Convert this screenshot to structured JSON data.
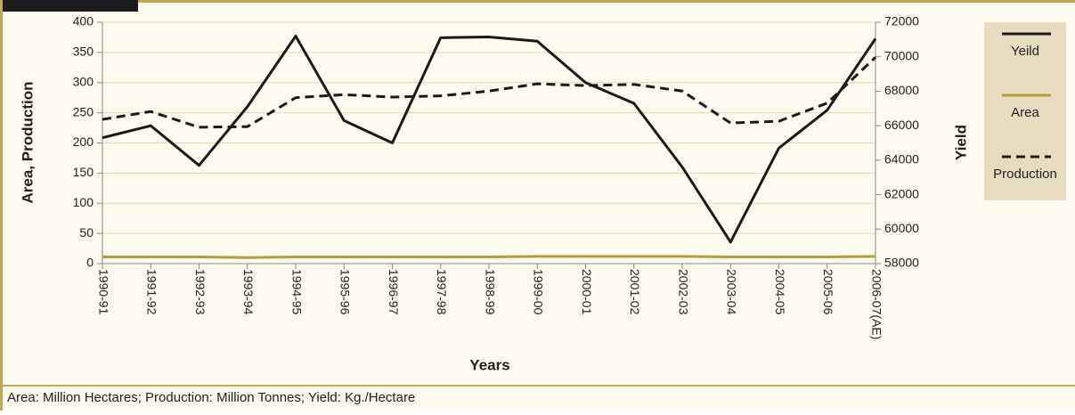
{
  "chart_data": {
    "type": "line",
    "xlabel": "Years",
    "ylabel": "Area, Production",
    "y2label": "Yield",
    "footnote": "Area: Million Hectares; Production: Million Tonnes; Yield: Kg./Hectare",
    "categories": [
      "1990-91",
      "1991-92",
      "1992-93",
      "1993-94",
      "1994-95",
      "1995-96",
      "1996-97",
      "1997-98",
      "1998-99",
      "1999-00",
      "2000-01",
      "2001-02",
      "2002-03",
      "2003-04",
      "2004-05",
      "2005-06",
      "2006-07(AE)"
    ],
    "series": [
      {
        "name": "Yeild",
        "color": "#1a1a1a",
        "style": "solid",
        "axis": "y2",
        "values": [
          65300,
          66000,
          63700,
          67100,
          71200,
          66300,
          65000,
          71100,
          71150,
          70900,
          68500,
          67300,
          63600,
          59250,
          64700,
          66900,
          71050
        ]
      },
      {
        "name": "Area",
        "color": "#b89b3c",
        "style": "solid",
        "values": [
          11,
          11,
          11,
          10,
          11,
          11,
          11,
          11,
          11,
          12,
          12,
          12,
          12,
          11,
          11,
          11,
          12
        ]
      },
      {
        "name": "Production",
        "color": "#1a1a1a",
        "style": "dashed",
        "values": [
          239,
          252,
          226,
          227,
          275,
          280,
          276,
          278,
          286,
          298,
          295,
          297,
          286,
          233,
          236,
          266,
          342
        ]
      }
    ],
    "ylim": [
      0,
      400
    ],
    "yticks": [
      0,
      50,
      100,
      150,
      200,
      250,
      300,
      350,
      400
    ],
    "y2lim": [
      58000,
      72000
    ],
    "y2ticks": [
      58000,
      60000,
      62000,
      64000,
      66000,
      68000,
      70000,
      72000
    ],
    "grid": true,
    "legend": "right"
  }
}
